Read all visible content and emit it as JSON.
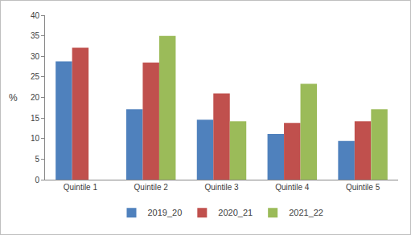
{
  "chart_data": {
    "type": "bar",
    "categories": [
      "Quintile 1",
      "Quintile 2",
      "Quintile 3",
      "Quintile 4",
      "Quintile 5"
    ],
    "series": [
      {
        "name": "2019_20",
        "color": "#4f81bd",
        "values": [
          28.8,
          17.1,
          14.6,
          11.1,
          9.4
        ]
      },
      {
        "name": "2020_21",
        "color": "#c0504d",
        "values": [
          32.1,
          28.5,
          21.0,
          13.8,
          14.2
        ]
      },
      {
        "name": "2021_22",
        "color": "#9bbb59",
        "values": [
          null,
          35.0,
          14.2,
          23.3,
          17.1
        ]
      }
    ],
    "y_label": "%",
    "ylim": [
      0,
      40
    ],
    "yticks": [
      0,
      5,
      10,
      15,
      20,
      25,
      30,
      35,
      40
    ],
    "grid": false,
    "legend": "bottom"
  }
}
